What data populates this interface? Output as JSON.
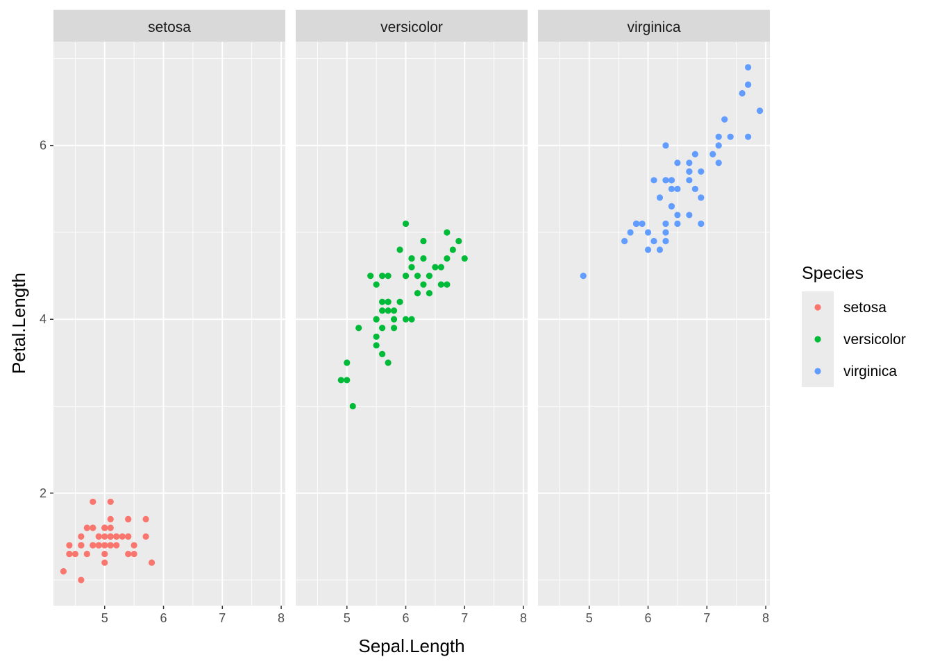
{
  "chart_data": {
    "type": "scatter",
    "xlabel": "Sepal.Length",
    "ylabel": "Petal.Length",
    "xlim": [
      4.13,
      8.07
    ],
    "ylim": [
      0.705,
      7.195
    ],
    "x_ticks": [
      5,
      6,
      7,
      8
    ],
    "y_ticks": [
      2,
      4,
      6
    ],
    "grid": true,
    "legend": {
      "title": "Species",
      "placement": "right",
      "entries": [
        "setosa",
        "versicolor",
        "virginica"
      ]
    },
    "facets": [
      {
        "label": "setosa",
        "color": "#F8766D",
        "points": [
          [
            5.1,
            1.4
          ],
          [
            4.9,
            1.4
          ],
          [
            4.7,
            1.3
          ],
          [
            4.6,
            1.5
          ],
          [
            5.0,
            1.4
          ],
          [
            5.4,
            1.7
          ],
          [
            4.6,
            1.4
          ],
          [
            5.0,
            1.5
          ],
          [
            4.4,
            1.4
          ],
          [
            4.9,
            1.5
          ],
          [
            5.4,
            1.5
          ],
          [
            4.8,
            1.6
          ],
          [
            4.8,
            1.4
          ],
          [
            4.3,
            1.1
          ],
          [
            5.8,
            1.2
          ],
          [
            5.7,
            1.5
          ],
          [
            5.4,
            1.3
          ],
          [
            5.1,
            1.4
          ],
          [
            5.7,
            1.7
          ],
          [
            5.1,
            1.5
          ],
          [
            5.4,
            1.7
          ],
          [
            5.1,
            1.5
          ],
          [
            4.6,
            1.0
          ],
          [
            5.1,
            1.7
          ],
          [
            4.8,
            1.9
          ],
          [
            5.0,
            1.6
          ],
          [
            5.0,
            1.6
          ],
          [
            5.2,
            1.5
          ],
          [
            5.2,
            1.4
          ],
          [
            4.7,
            1.6
          ],
          [
            4.8,
            1.6
          ],
          [
            5.4,
            1.5
          ],
          [
            5.2,
            1.5
          ],
          [
            5.5,
            1.4
          ],
          [
            4.9,
            1.5
          ],
          [
            5.0,
            1.2
          ],
          [
            5.5,
            1.3
          ],
          [
            4.9,
            1.4
          ],
          [
            4.4,
            1.3
          ],
          [
            5.1,
            1.5
          ],
          [
            5.0,
            1.3
          ],
          [
            4.5,
            1.3
          ],
          [
            4.4,
            1.3
          ],
          [
            5.0,
            1.6
          ],
          [
            5.1,
            1.9
          ],
          [
            4.8,
            1.4
          ],
          [
            5.1,
            1.6
          ],
          [
            4.6,
            1.4
          ],
          [
            5.3,
            1.5
          ],
          [
            5.0,
            1.4
          ]
        ]
      },
      {
        "label": "versicolor",
        "color": "#00BA38",
        "points": [
          [
            7.0,
            4.7
          ],
          [
            6.4,
            4.5
          ],
          [
            6.9,
            4.9
          ],
          [
            5.5,
            4.0
          ],
          [
            6.5,
            4.6
          ],
          [
            5.7,
            4.5
          ],
          [
            6.3,
            4.7
          ],
          [
            4.9,
            3.3
          ],
          [
            6.6,
            4.6
          ],
          [
            5.2,
            3.9
          ],
          [
            5.0,
            3.5
          ],
          [
            5.9,
            4.2
          ],
          [
            6.0,
            4.0
          ],
          [
            6.1,
            4.7
          ],
          [
            5.6,
            3.6
          ],
          [
            6.7,
            4.4
          ],
          [
            5.6,
            4.5
          ],
          [
            5.8,
            4.1
          ],
          [
            6.2,
            4.5
          ],
          [
            5.6,
            3.9
          ],
          [
            5.9,
            4.8
          ],
          [
            6.1,
            4.0
          ],
          [
            6.3,
            4.9
          ],
          [
            6.1,
            4.7
          ],
          [
            6.4,
            4.3
          ],
          [
            6.6,
            4.4
          ],
          [
            6.8,
            4.8
          ],
          [
            6.7,
            5.0
          ],
          [
            6.0,
            4.5
          ],
          [
            5.7,
            3.5
          ],
          [
            5.5,
            3.8
          ],
          [
            5.5,
            3.7
          ],
          [
            5.8,
            3.9
          ],
          [
            6.0,
            5.1
          ],
          [
            5.4,
            4.5
          ],
          [
            6.0,
            4.5
          ],
          [
            6.7,
            4.7
          ],
          [
            6.3,
            4.4
          ],
          [
            5.6,
            4.1
          ],
          [
            5.5,
            4.0
          ],
          [
            5.5,
            4.4
          ],
          [
            6.1,
            4.6
          ],
          [
            5.8,
            4.0
          ],
          [
            5.0,
            3.3
          ],
          [
            5.6,
            4.2
          ],
          [
            5.7,
            4.2
          ],
          [
            5.7,
            4.2
          ],
          [
            6.2,
            4.3
          ],
          [
            5.1,
            3.0
          ],
          [
            5.7,
            4.1
          ]
        ]
      },
      {
        "label": "virginica",
        "color": "#619CFF",
        "points": [
          [
            6.3,
            6.0
          ],
          [
            5.8,
            5.1
          ],
          [
            7.1,
            5.9
          ],
          [
            6.3,
            5.6
          ],
          [
            6.5,
            5.8
          ],
          [
            7.6,
            6.6
          ],
          [
            4.9,
            4.5
          ],
          [
            7.3,
            6.3
          ],
          [
            6.7,
            5.8
          ],
          [
            7.2,
            6.1
          ],
          [
            6.5,
            5.1
          ],
          [
            6.4,
            5.3
          ],
          [
            6.8,
            5.5
          ],
          [
            5.7,
            5.0
          ],
          [
            5.8,
            5.1
          ],
          [
            6.4,
            5.3
          ],
          [
            6.5,
            5.5
          ],
          [
            7.7,
            6.7
          ],
          [
            7.7,
            6.9
          ],
          [
            6.0,
            5.0
          ],
          [
            6.9,
            5.7
          ],
          [
            5.6,
            4.9
          ],
          [
            7.7,
            6.7
          ],
          [
            6.3,
            4.9
          ],
          [
            6.7,
            5.7
          ],
          [
            7.2,
            6.0
          ],
          [
            6.2,
            4.8
          ],
          [
            6.1,
            4.9
          ],
          [
            6.4,
            5.6
          ],
          [
            7.2,
            5.8
          ],
          [
            7.4,
            6.1
          ],
          [
            7.9,
            6.4
          ],
          [
            6.4,
            5.6
          ],
          [
            6.3,
            5.1
          ],
          [
            6.1,
            5.6
          ],
          [
            7.7,
            6.1
          ],
          [
            6.3,
            5.6
          ],
          [
            6.4,
            5.5
          ],
          [
            6.0,
            4.8
          ],
          [
            6.9,
            5.4
          ],
          [
            6.7,
            5.6
          ],
          [
            6.9,
            5.1
          ],
          [
            5.8,
            5.1
          ],
          [
            6.8,
            5.9
          ],
          [
            6.7,
            5.7
          ],
          [
            6.7,
            5.2
          ],
          [
            6.3,
            5.0
          ],
          [
            6.5,
            5.2
          ],
          [
            6.2,
            5.4
          ],
          [
            5.9,
            5.1
          ]
        ]
      }
    ]
  }
}
